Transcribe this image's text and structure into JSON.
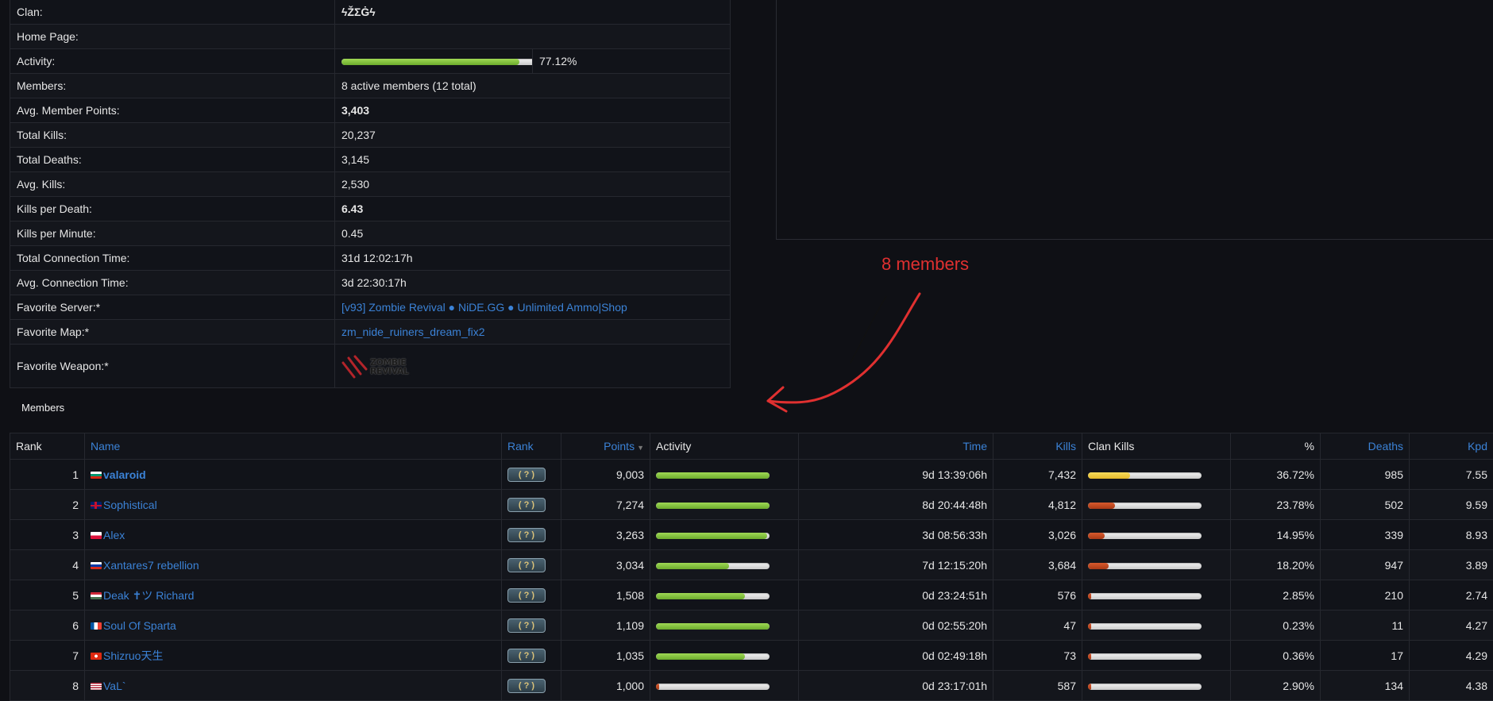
{
  "clan_info": {
    "rows": [
      {
        "label": "Clan:",
        "value": "ϟŽΣĠϟ"
      },
      {
        "label": "Home Page:",
        "value": ""
      },
      {
        "label": "Activity:",
        "value": "77.12%",
        "activity": 0.7712
      },
      {
        "label": "Members:",
        "value": "8 active members (12 total)"
      },
      {
        "label": "Avg. Member Points:",
        "value": "3,403"
      },
      {
        "label": "Total Kills:",
        "value": "20,237"
      },
      {
        "label": "Total Deaths:",
        "value": "3,145"
      },
      {
        "label": "Avg. Kills:",
        "value": "2,530"
      },
      {
        "label": "Kills per Death:",
        "value": "6.43"
      },
      {
        "label": "Kills per Minute:",
        "value": "0.45"
      },
      {
        "label": "Total Connection Time:",
        "value": "31d 12:02:17h"
      },
      {
        "label": "Avg. Connection Time:",
        "value": "3d 22:30:17h"
      },
      {
        "label": "Favorite Server:*",
        "value": "[v93] Zombie Revival ● NiDE.GG ● Unlimited Ammo|Shop"
      },
      {
        "label": "Favorite Map:*",
        "value": "zm_nide_ruiners_dream_fix2"
      },
      {
        "label": "Favorite Weapon:*",
        "value": "",
        "weapon_logo_text": [
          "ZOMBIE",
          "REVIVAL"
        ]
      }
    ]
  },
  "annotation": {
    "text": "8 members",
    "color": "#e03030"
  },
  "members": {
    "heading": "Members",
    "columns": {
      "rank": "Rank",
      "name": "Name",
      "rank_icon": "Rank",
      "points": "Points",
      "activity": "Activity",
      "time": "Time",
      "kills": "Kills",
      "clan_kills": "Clan Kills",
      "pct": "%",
      "deaths": "Deaths",
      "kpd": "Kpd"
    },
    "rank_badge_text": "( ? )",
    "rows": [
      {
        "rank": "1",
        "flag": "bg",
        "name": "valaroid",
        "bold": true,
        "points": "9,003",
        "activity": 1.0,
        "time": "9d 13:39:06h",
        "kills": "7,432",
        "clan_kills": 0.3672,
        "pct": "36.72%",
        "deaths": "985",
        "kpd": "7.55"
      },
      {
        "rank": "2",
        "flag": "gb",
        "name": "Sophistical",
        "bold": false,
        "points": "7,274",
        "activity": 1.0,
        "time": "8d 20:44:48h",
        "kills": "4,812",
        "clan_kills": 0.2378,
        "pct": "23.78%",
        "deaths": "502",
        "kpd": "9.59"
      },
      {
        "rank": "3",
        "flag": "pl",
        "name": "Alex",
        "bold": false,
        "points": "3,263",
        "activity": 0.98,
        "time": "3d 08:56:33h",
        "kills": "3,026",
        "clan_kills": 0.1495,
        "pct": "14.95%",
        "deaths": "339",
        "kpd": "8.93"
      },
      {
        "rank": "4",
        "flag": "ru",
        "name": "Xantares7 rebellion",
        "bold": false,
        "points": "3,034",
        "activity": 0.64,
        "time": "7d 12:15:20h",
        "kills": "3,684",
        "clan_kills": 0.182,
        "pct": "18.20%",
        "deaths": "947",
        "kpd": "3.89"
      },
      {
        "rank": "5",
        "flag": "hu",
        "name": "Deak ✝ツ Richard",
        "bold": false,
        "points": "1,508",
        "activity": 0.78,
        "time": "0d 23:24:51h",
        "kills": "576",
        "clan_kills": 0.0285,
        "pct": "2.85%",
        "deaths": "210",
        "kpd": "2.74"
      },
      {
        "rank": "6",
        "flag": "fr",
        "name": "Soul Of Sparta",
        "bold": false,
        "points": "1,109",
        "activity": 1.0,
        "time": "0d 02:55:20h",
        "kills": "47",
        "clan_kills": 0.0023,
        "pct": "0.23%",
        "deaths": "11",
        "kpd": "4.27"
      },
      {
        "rank": "7",
        "flag": "hk",
        "name": "Shizruo天生",
        "bold": false,
        "points": "1,035",
        "activity": 0.78,
        "time": "0d 02:49:18h",
        "kills": "73",
        "clan_kills": 0.0036,
        "pct": "0.36%",
        "deaths": "17",
        "kpd": "4.29"
      },
      {
        "rank": "8",
        "flag": "us",
        "name": "VaL`",
        "bold": false,
        "points": "1,000",
        "activity": 0.02,
        "time": "0d 23:17:01h",
        "kills": "587",
        "clan_kills": 0.029,
        "pct": "2.90%",
        "deaths": "134",
        "kpd": "4.38"
      }
    ]
  }
}
